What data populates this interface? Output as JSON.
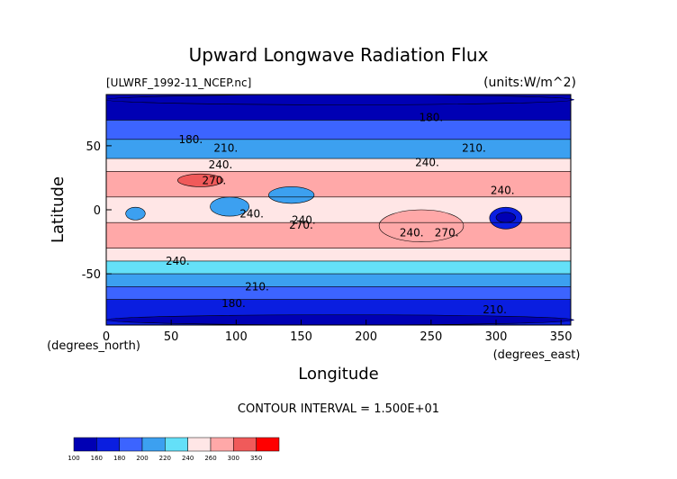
{
  "chart_data": {
    "type": "heatmap",
    "title": "Upward Longwave Radiation Flux",
    "file_label": "[ULWRF_1992-11_NCEP.nc]",
    "units_label": "(units:W/m^2)",
    "xlabel": "Longitude",
    "ylabel": "Latitude",
    "x_unit_label": "(degrees_east)",
    "y_unit_label": "(degrees_north)",
    "xlim": [
      0,
      357.5
    ],
    "ylim": [
      -90,
      90
    ],
    "x_ticks": [
      "0",
      "50",
      "100",
      "150",
      "200",
      "250",
      "300",
      "350"
    ],
    "y_ticks": [
      "50",
      "0",
      "-50"
    ],
    "contour_interval_text": "CONTOUR INTERVAL = 1.500E+01",
    "contour_labels": [
      {
        "text": "180.",
        "lon": 250,
        "lat": 72
      },
      {
        "text": "180.",
        "lon": 65,
        "lat": 55
      },
      {
        "text": "210.",
        "lon": 92,
        "lat": 48
      },
      {
        "text": "210.",
        "lon": 283,
        "lat": 48
      },
      {
        "text": "240.",
        "lon": 88,
        "lat": 35
      },
      {
        "text": "240.",
        "lon": 247,
        "lat": 37
      },
      {
        "text": "240.",
        "lon": 305,
        "lat": 15
      },
      {
        "text": "270.",
        "lon": 83,
        "lat": 23
      },
      {
        "text": "240.",
        "lon": 112,
        "lat": -3
      },
      {
        "text": "240.",
        "lon": 152,
        "lat": -8
      },
      {
        "text": "270.",
        "lon": 150,
        "lat": -12
      },
      {
        "text": "240.",
        "lon": 235,
        "lat": -18
      },
      {
        "text": "270.",
        "lon": 262,
        "lat": -18
      },
      {
        "text": "240.",
        "lon": 55,
        "lat": -40
      },
      {
        "text": "210.",
        "lon": 116,
        "lat": -60
      },
      {
        "text": "180.",
        "lon": 98,
        "lat": -73
      },
      {
        "text": "210.",
        "lon": 299,
        "lat": -78
      }
    ],
    "colorbar": {
      "ticks": [
        "100",
        "160",
        "180",
        "200",
        "220",
        "240",
        "260",
        "300",
        "350"
      ],
      "colors": [
        "#0000b4",
        "#0a1ee0",
        "#3c64ff",
        "#3ca0f0",
        "#64e0f8",
        "#ffe6e6",
        "#ffa8a8",
        "#f05a5a",
        "#ff0000"
      ]
    },
    "zonal_bands": [
      {
        "lat": [
          70,
          90
        ],
        "value": 150
      },
      {
        "lat": [
          55,
          70
        ],
        "value": 190
      },
      {
        "lat": [
          40,
          55
        ],
        "value": 215
      },
      {
        "lat": [
          30,
          40
        ],
        "value": 245
      },
      {
        "lat": [
          10,
          30
        ],
        "value": 270
      },
      {
        "lat": [
          -10,
          10
        ],
        "value": 250
      },
      {
        "lat": [
          -30,
          -10
        ],
        "value": 270
      },
      {
        "lat": [
          -40,
          -30
        ],
        "value": 245
      },
      {
        "lat": [
          -50,
          -40
        ],
        "value": 230
      },
      {
        "lat": [
          -60,
          -50
        ],
        "value": 210
      },
      {
        "lat": [
          -70,
          -60
        ],
        "value": 195
      },
      {
        "lat": [
          -90,
          -70
        ],
        "value": 165
      }
    ],
    "features": [
      {
        "lon": [
          210,
          275
        ],
        "lat": [
          -25,
          0
        ],
        "value": 285
      },
      {
        "lon": [
          55,
          90
        ],
        "lat": [
          18,
          28
        ],
        "value": 300
      },
      {
        "lon": [
          295,
          320
        ],
        "lat": [
          -15,
          2
        ],
        "value": 170
      },
      {
        "lon": [
          300,
          315
        ],
        "lat": [
          -10,
          -2
        ],
        "value": 140
      },
      {
        "lon": [
          15,
          30
        ],
        "lat": [
          -8,
          2
        ],
        "value": 205
      },
      {
        "lon": [
          80,
          110
        ],
        "lat": [
          -5,
          10
        ],
        "value": 215
      },
      {
        "lon": [
          125,
          160
        ],
        "lat": [
          5,
          18
        ],
        "value": 205
      },
      {
        "lon": [
          0,
          360
        ],
        "lat": [
          -90,
          -82
        ],
        "value": 130
      },
      {
        "lon": [
          0,
          360
        ],
        "lat": [
          82,
          90
        ],
        "value": 110
      }
    ]
  }
}
